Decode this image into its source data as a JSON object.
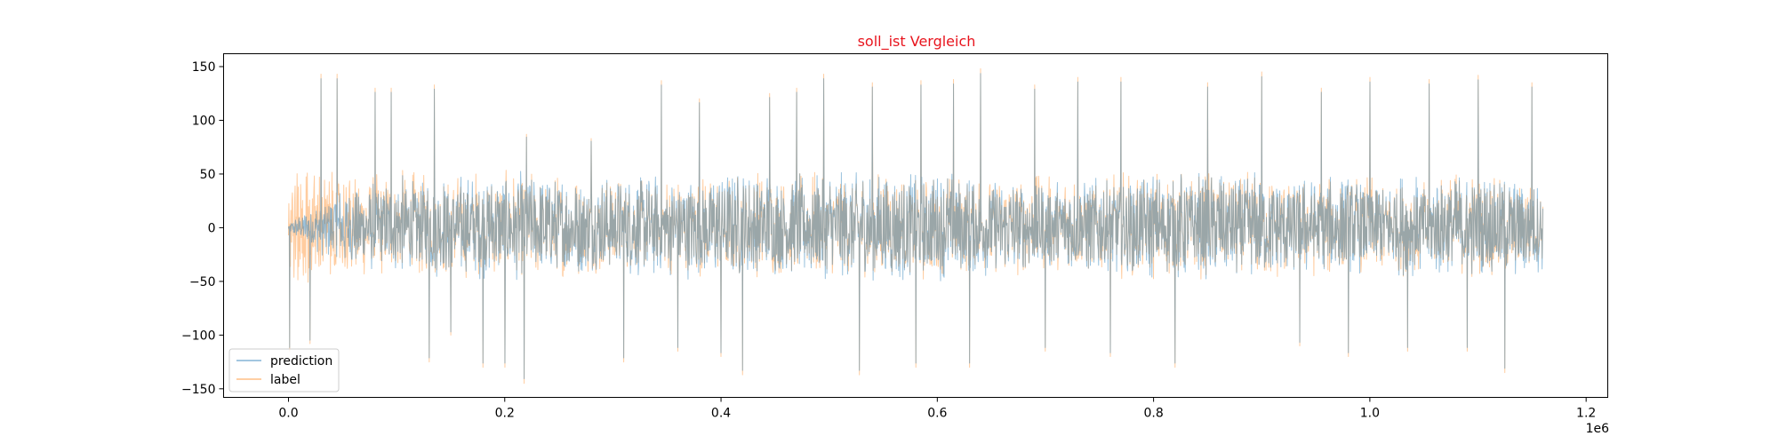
{
  "chart_data": {
    "type": "line",
    "title": "soll_ist Vergleich",
    "title_color": "#e8141d",
    "xlabel": "",
    "ylabel": "",
    "x_offset_label": "1e6",
    "xlim": [
      -60000,
      1220000
    ],
    "ylim": [
      -158,
      162
    ],
    "x_ticks": [
      0.0,
      0.2,
      0.4,
      0.6,
      0.8,
      1.0,
      1.2
    ],
    "x_tick_labels": [
      "0.0",
      "0.2",
      "0.4",
      "0.6",
      "0.8",
      "1.0",
      "1.2"
    ],
    "y_ticks": [
      150,
      100,
      50,
      0,
      -50,
      -100,
      -150
    ],
    "y_tick_labels": [
      "150",
      "100",
      "50",
      "0",
      "−50",
      "−100",
      "−150"
    ],
    "grid": false,
    "legend_position": "lower-left",
    "x_range": [
      0,
      1160000
    ],
    "series": [
      {
        "name": "prediction",
        "color": "#1f77b4",
        "opacity": 0.45,
        "envelope": {
          "x": [
            0,
            20000,
            50000,
            100000,
            200000,
            300000,
            400000,
            500000,
            600000,
            700000,
            800000,
            900000,
            1000000,
            1100000,
            1160000
          ],
          "upper": [
            5,
            20,
            40,
            50,
            55,
            50,
            55,
            55,
            55,
            50,
            55,
            55,
            50,
            55,
            45
          ],
          "lower": [
            -5,
            -20,
            -40,
            -45,
            -50,
            -45,
            -50,
            -50,
            -50,
            -45,
            -50,
            -50,
            -45,
            -50,
            -45
          ]
        }
      },
      {
        "name": "label",
        "color": "#ff7f0e",
        "opacity": 0.4,
        "envelope": {
          "x": [
            0,
            20000,
            50000,
            100000,
            200000,
            300000,
            400000,
            500000,
            600000,
            700000,
            800000,
            900000,
            1000000,
            1100000,
            1160000
          ],
          "upper": [
            60,
            60,
            55,
            55,
            55,
            50,
            55,
            55,
            55,
            50,
            55,
            55,
            50,
            55,
            45
          ],
          "lower": [
            -60,
            -60,
            -50,
            -45,
            -50,
            -45,
            -50,
            -50,
            -50,
            -45,
            -50,
            -50,
            -45,
            -50,
            -45
          ]
        }
      }
    ],
    "peaks": [
      {
        "x": 1000,
        "y": -115
      },
      {
        "x": 20000,
        "y": -108
      },
      {
        "x": 30000,
        "y": 143
      },
      {
        "x": 45000,
        "y": 143
      },
      {
        "x": 80000,
        "y": 130
      },
      {
        "x": 95000,
        "y": 130
      },
      {
        "x": 135000,
        "y": 133
      },
      {
        "x": 130000,
        "y": -125
      },
      {
        "x": 150000,
        "y": -100
      },
      {
        "x": 180000,
        "y": -130
      },
      {
        "x": 200000,
        "y": -130
      },
      {
        "x": 218000,
        "y": -145
      },
      {
        "x": 220000,
        "y": 87
      },
      {
        "x": 280000,
        "y": 83
      },
      {
        "x": 310000,
        "y": -125
      },
      {
        "x": 345000,
        "y": 137
      },
      {
        "x": 360000,
        "y": -115
      },
      {
        "x": 380000,
        "y": 120
      },
      {
        "x": 400000,
        "y": -120
      },
      {
        "x": 420000,
        "y": -137
      },
      {
        "x": 445000,
        "y": 125
      },
      {
        "x": 470000,
        "y": 130
      },
      {
        "x": 495000,
        "y": 143
      },
      {
        "x": 528000,
        "y": -137
      },
      {
        "x": 540000,
        "y": 135
      },
      {
        "x": 580000,
        "y": -130
      },
      {
        "x": 585000,
        "y": 137
      },
      {
        "x": 615000,
        "y": 138
      },
      {
        "x": 630000,
        "y": -130
      },
      {
        "x": 640000,
        "y": 148
      },
      {
        "x": 690000,
        "y": 133
      },
      {
        "x": 700000,
        "y": -115
      },
      {
        "x": 730000,
        "y": 140
      },
      {
        "x": 760000,
        "y": -120
      },
      {
        "x": 770000,
        "y": 140
      },
      {
        "x": 820000,
        "y": -130
      },
      {
        "x": 850000,
        "y": 135
      },
      {
        "x": 900000,
        "y": 145
      },
      {
        "x": 935000,
        "y": -110
      },
      {
        "x": 955000,
        "y": 130
      },
      {
        "x": 980000,
        "y": -120
      },
      {
        "x": 1000000,
        "y": 140
      },
      {
        "x": 1035000,
        "y": -115
      },
      {
        "x": 1055000,
        "y": 138
      },
      {
        "x": 1090000,
        "y": -115
      },
      {
        "x": 1100000,
        "y": 142
      },
      {
        "x": 1125000,
        "y": -135
      },
      {
        "x": 1150000,
        "y": 135
      }
    ]
  }
}
